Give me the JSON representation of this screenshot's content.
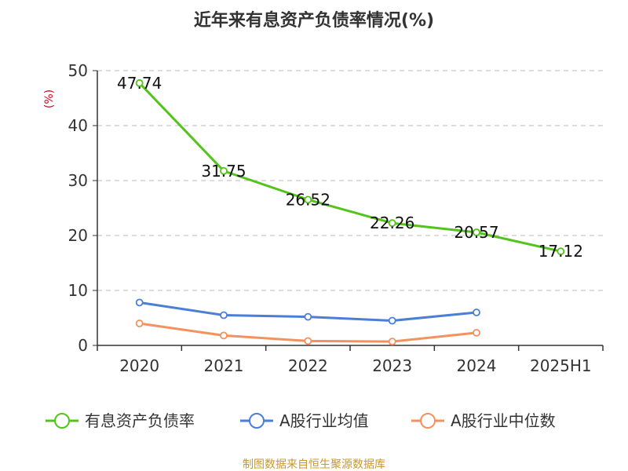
{
  "chart_data": {
    "type": "line",
    "title": "近年来有息资产负债率情况(%)",
    "ylabel": "(%)",
    "xlabel": "",
    "categories": [
      "2020",
      "2021",
      "2022",
      "2023",
      "2024",
      "2025H1"
    ],
    "ylim": [
      0,
      50
    ],
    "yticks": [
      0,
      10,
      20,
      30,
      40,
      50
    ],
    "grid": true,
    "legend_position": "bottom",
    "series": [
      {
        "name": "有息资产负债率",
        "color": "#52c41a",
        "values": [
          47.74,
          31.75,
          26.52,
          22.26,
          20.57,
          17.12
        ],
        "labels": [
          "47.74",
          "31.75",
          "26.52",
          "22.26",
          "20.57",
          "17.12"
        ]
      },
      {
        "name": "A股行业均值",
        "color": "#4a7fd8",
        "values": [
          7.8,
          5.5,
          5.2,
          4.5,
          6.0,
          null
        ]
      },
      {
        "name": "A股行业中位数",
        "color": "#f4915e",
        "values": [
          4.0,
          1.8,
          0.8,
          0.7,
          2.3,
          null
        ]
      }
    ],
    "source": "制图数据来自恒生聚源数据库",
    "colors": {
      "axis": "#333333",
      "grid": "#bbbbbb",
      "ylabel": "#d0021b",
      "source": "#c8982f"
    }
  }
}
